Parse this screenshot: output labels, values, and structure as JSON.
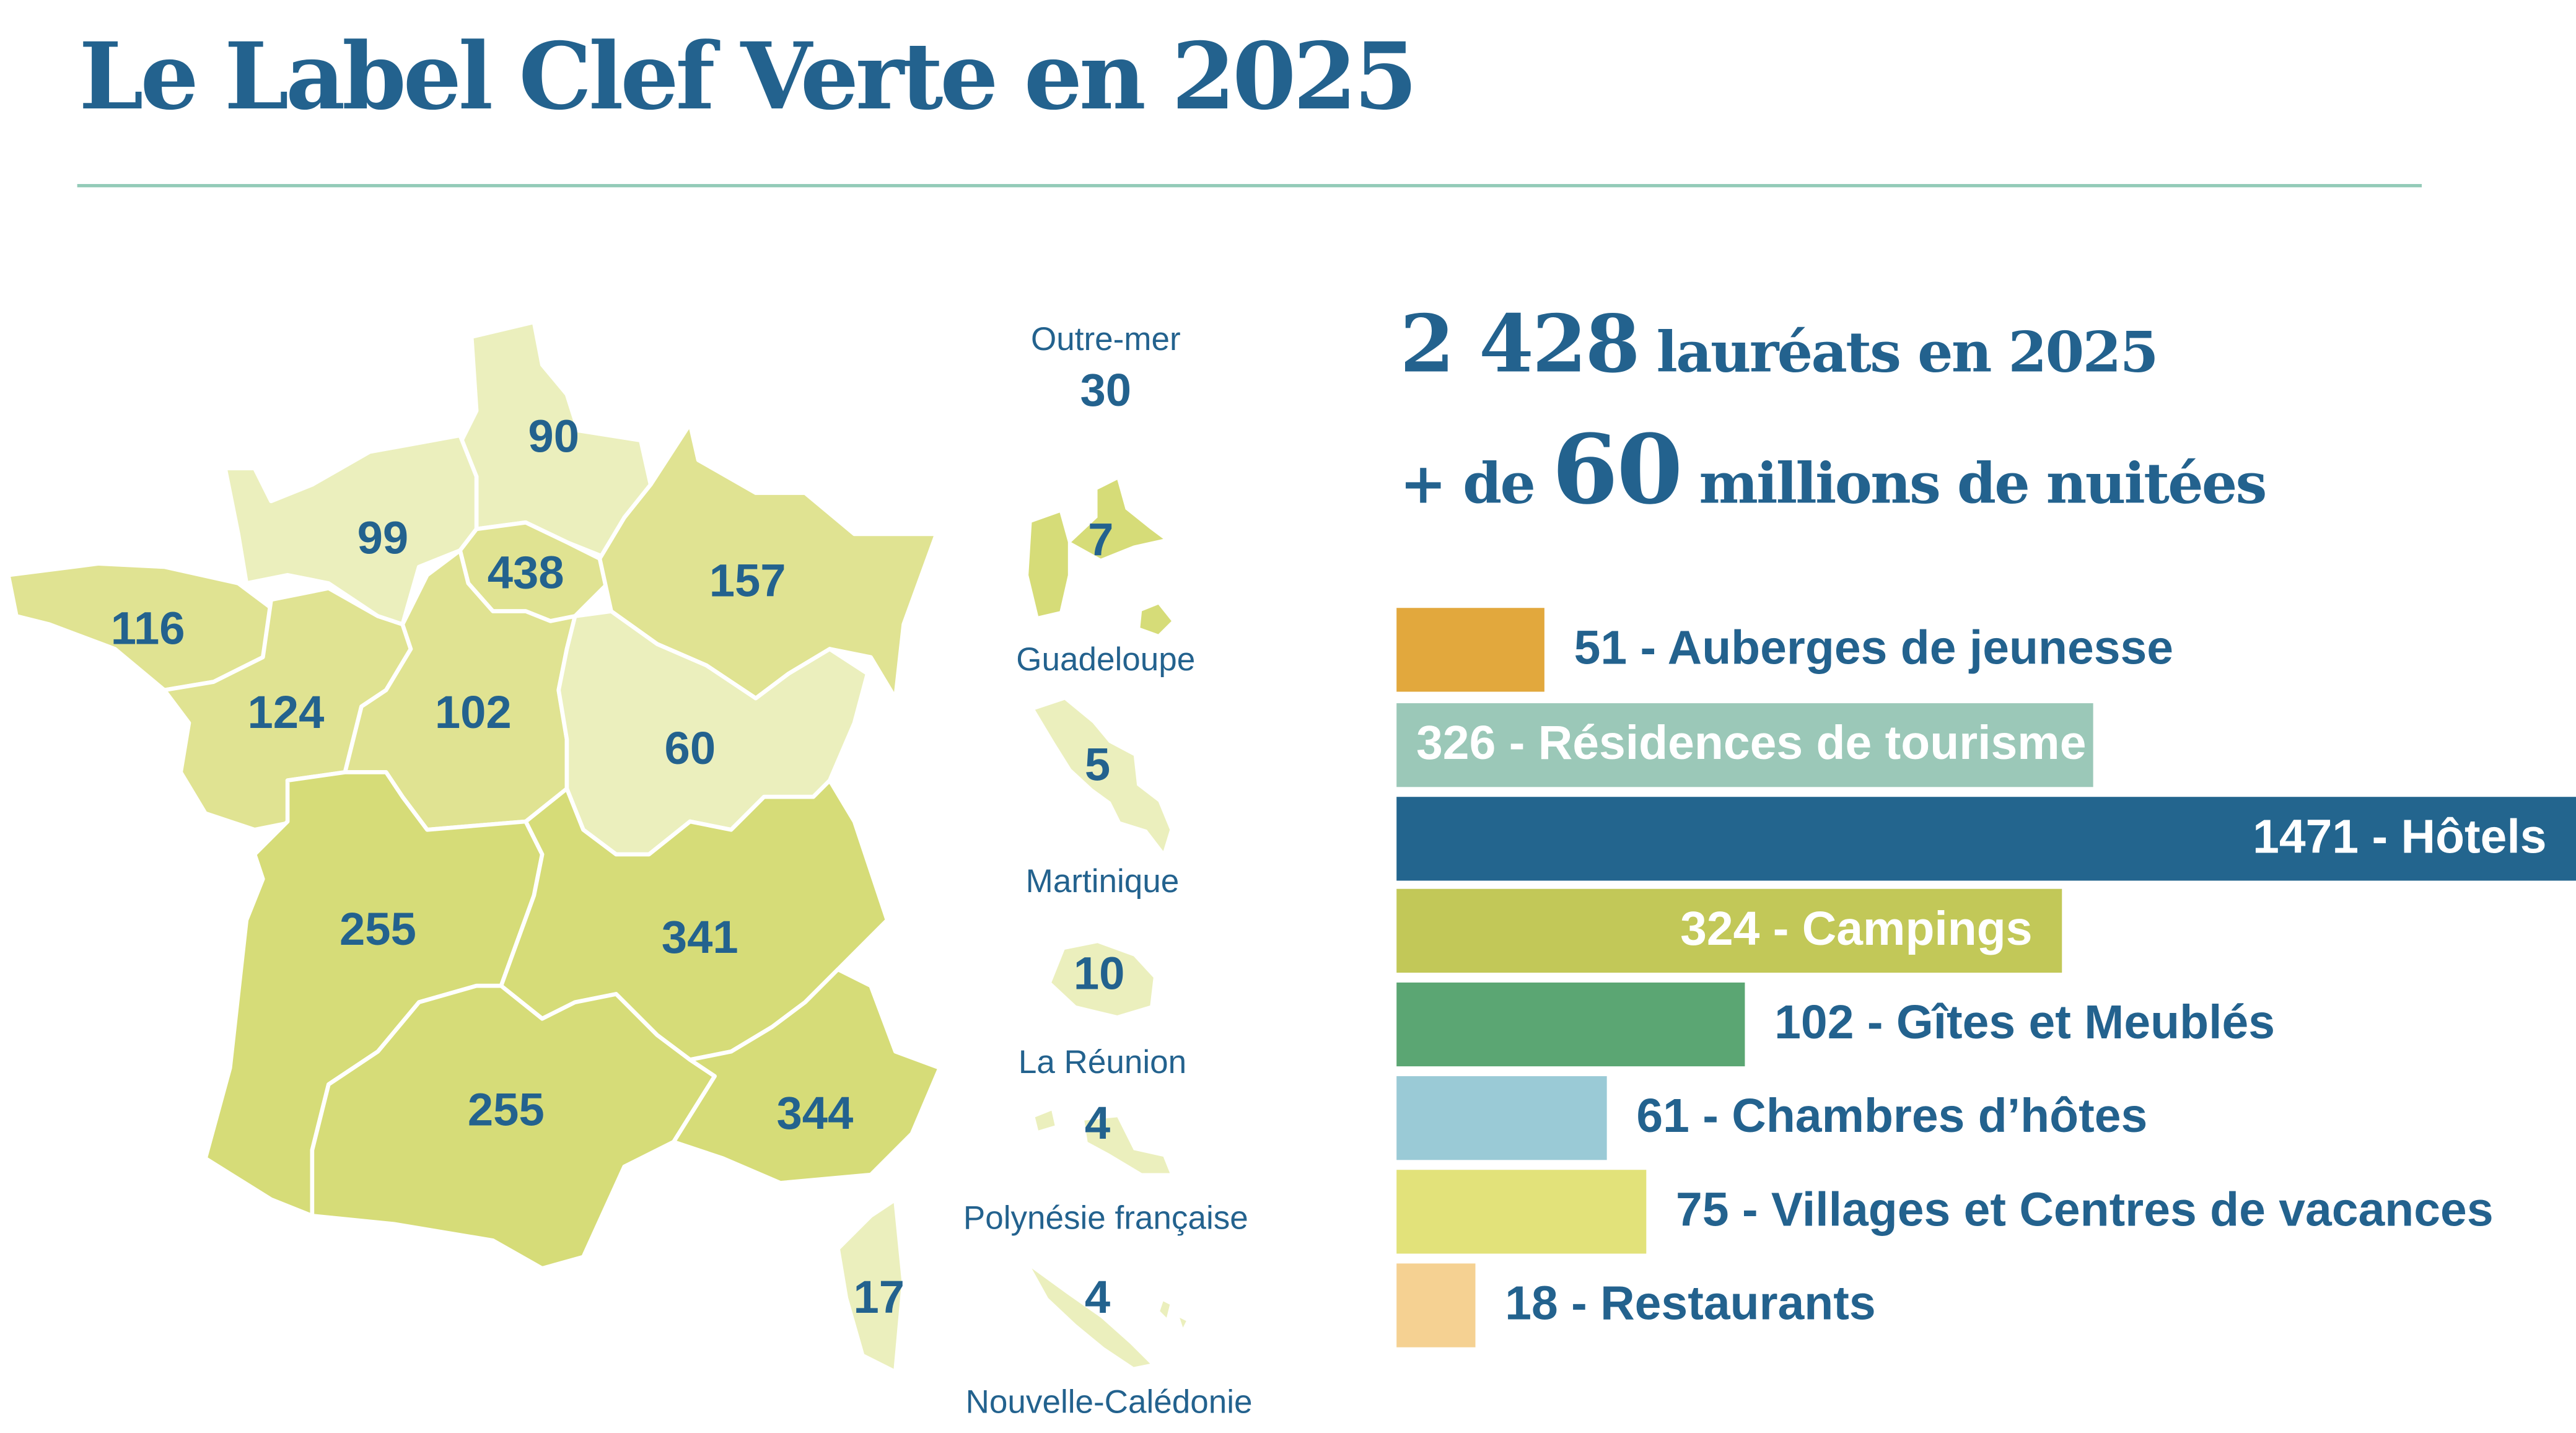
{
  "title": "Le Label Clef Verte en 2025",
  "stats": {
    "laureats_number": "2 428",
    "laureats_text": "lauréats en 2025",
    "nuitees_prefix": "+ de",
    "nuitees_number": "60",
    "nuitees_text": "millions de nuitées"
  },
  "colors": {
    "text": "#23628e",
    "rule": "#93cbb8",
    "region_dark": "#d6dc78",
    "region_mid": "#e0e392",
    "region_light": "#ebefbd"
  },
  "map": {
    "regions": [
      {
        "value": "90",
        "shade": "light"
      },
      {
        "value": "99",
        "shade": "light"
      },
      {
        "value": "438",
        "shade": "mid"
      },
      {
        "value": "157",
        "shade": "mid"
      },
      {
        "value": "116",
        "shade": "mid"
      },
      {
        "value": "124",
        "shade": "mid"
      },
      {
        "value": "102",
        "shade": "mid"
      },
      {
        "value": "60",
        "shade": "light"
      },
      {
        "value": "255",
        "shade": "dark"
      },
      {
        "value": "341",
        "shade": "dark"
      },
      {
        "value": "255",
        "shade": "dark"
      },
      {
        "value": "344",
        "shade": "dark"
      },
      {
        "value": "17",
        "shade": "light"
      }
    ],
    "outremer": {
      "label": "Outre-mer",
      "total": "30",
      "territories": [
        {
          "name": "Guadeloupe",
          "value": "7"
        },
        {
          "name": "Martinique",
          "value": "5"
        },
        {
          "name": "La Réunion",
          "value": "10"
        },
        {
          "name": "Polynésie française",
          "value": "4"
        },
        {
          "name": "Nouvelle-Calédonie",
          "value": "4"
        }
      ]
    }
  },
  "chart_data": {
    "type": "bar",
    "orientation": "horizontal",
    "categories": [
      "Auberges de jeunesse",
      "Résidences de tourisme",
      "Hôtels",
      "Campings",
      "Gîtes et Meublés",
      "Chambres d’hôtes",
      "Villages et Centres de vacances",
      "Restaurants"
    ],
    "values": [
      51,
      326,
      1471,
      324,
      102,
      61,
      75,
      18
    ],
    "labels": [
      "51 - Auberges de jeunesse",
      "326 - Résidences de tourisme",
      "1471 - Hôtels",
      "324 - Campings",
      "102 - Gîtes et Meublés",
      "61 - Chambres d’hôtes",
      "75 - Villages et Centres de vacances",
      "18 - Restaurants"
    ],
    "colors": [
      "#e2a83d",
      "#9bc8b8",
      "#23658e",
      "#c2c858",
      "#5ba673",
      "#9acad6",
      "#e2e27a",
      "#f5d192"
    ]
  }
}
